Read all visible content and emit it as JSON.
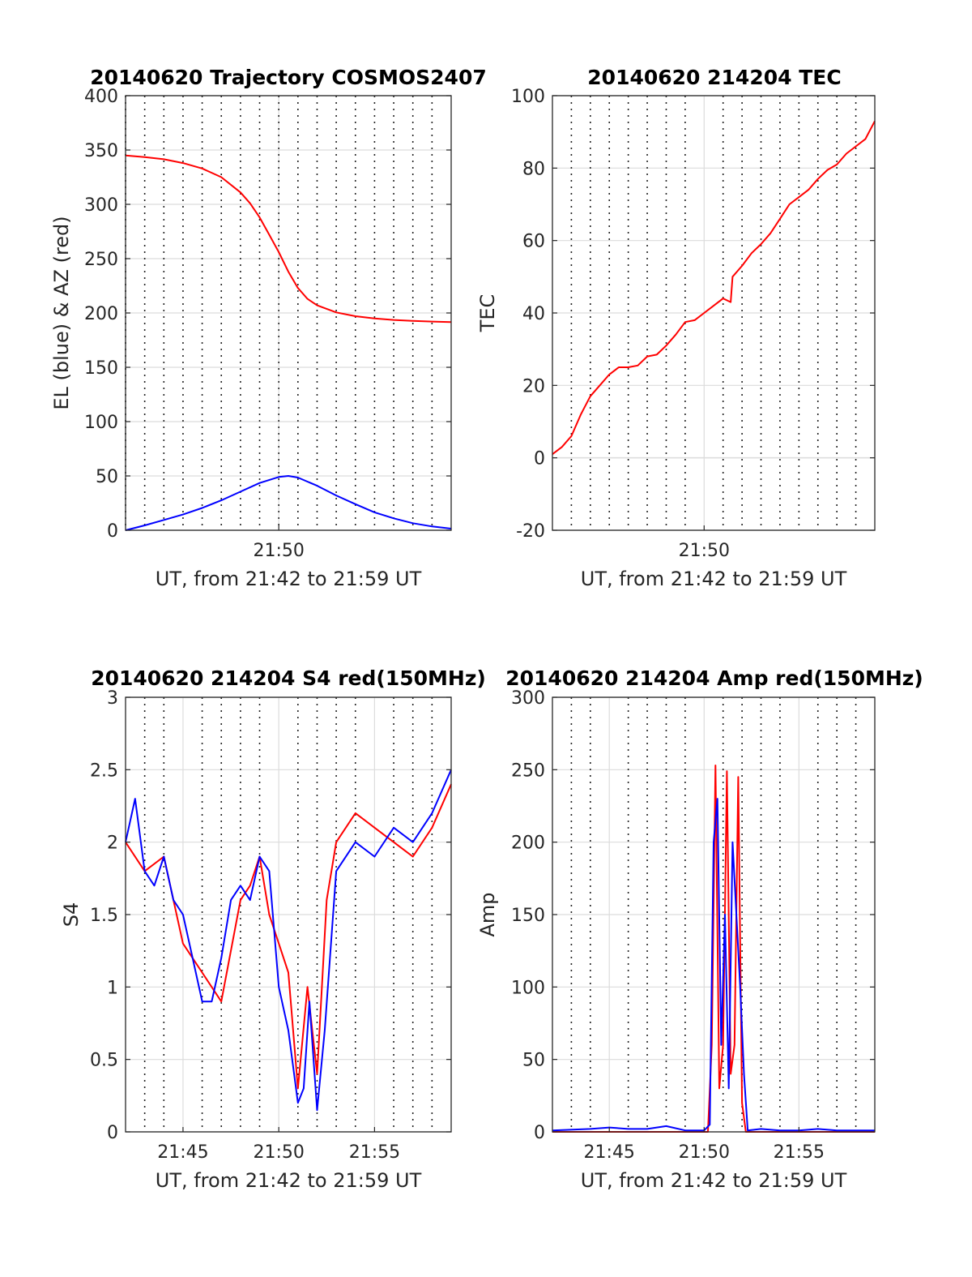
{
  "chart_data": [
    {
      "type": "line",
      "title": "20140620 Trajectory COSMOS2407",
      "xlabel": "UT, from 21:42 to 21:59 UT",
      "ylabel": "EL (blue) & AZ (red)",
      "xlim": [
        42,
        59
      ],
      "ylim": [
        0,
        400
      ],
      "xticks": [
        {
          "value": 50,
          "label": "21:50"
        }
      ],
      "yticks": [
        {
          "value": 0,
          "label": "0"
        },
        {
          "value": 50,
          "label": "50"
        },
        {
          "value": 100,
          "label": "100"
        },
        {
          "value": 150,
          "label": "150"
        },
        {
          "value": 200,
          "label": "200"
        },
        {
          "value": 250,
          "label": "250"
        },
        {
          "value": 300,
          "label": "300"
        },
        {
          "value": 350,
          "label": "350"
        },
        {
          "value": 400,
          "label": "400"
        }
      ],
      "vgrid_minutes": [
        42,
        43,
        44,
        45,
        46,
        47,
        48,
        49,
        50,
        51,
        52,
        53,
        54,
        55,
        56,
        57,
        58
      ],
      "series": [
        {
          "color": "#ff0000",
          "x": [
            42,
            43,
            44,
            45,
            46,
            47,
            48,
            48.5,
            49,
            49.5,
            50,
            50.5,
            51,
            51.5,
            52,
            53,
            54,
            55,
            56,
            57,
            58,
            59
          ],
          "y": [
            345,
            343.5,
            341.5,
            338,
            333,
            325,
            311,
            301,
            288,
            272,
            256,
            238,
            223,
            213,
            207,
            200.5,
            197,
            195,
            193.6,
            192.7,
            192.1,
            191.6
          ]
        },
        {
          "color": "#0000ff",
          "x": [
            42,
            43,
            44,
            45,
            46,
            47,
            48,
            49,
            50,
            50.5,
            51,
            52,
            53,
            54,
            55,
            56,
            57,
            58,
            59
          ],
          "y": [
            0,
            4.5,
            9.5,
            14.5,
            20.5,
            27.5,
            35.5,
            43.5,
            49,
            50,
            48.5,
            41,
            32,
            24,
            16.5,
            11,
            6.5,
            3.5,
            1.5
          ]
        }
      ]
    },
    {
      "type": "line",
      "title": "20140620 214204 TEC",
      "xlabel": "UT, from 21:42 to 21:59 UT",
      "ylabel": "TEC",
      "xlim": [
        42,
        59
      ],
      "ylim": [
        -20,
        100
      ],
      "xticks": [
        {
          "value": 50,
          "label": "21:50"
        }
      ],
      "yticks": [
        {
          "value": -20,
          "label": "-20"
        },
        {
          "value": 0,
          "label": "0"
        },
        {
          "value": 20,
          "label": "20"
        },
        {
          "value": 40,
          "label": "40"
        },
        {
          "value": 60,
          "label": "60"
        },
        {
          "value": 80,
          "label": "80"
        },
        {
          "value": 100,
          "label": "100"
        }
      ],
      "vgrid_minutes": [
        43,
        44,
        45,
        46,
        47,
        48,
        49,
        51,
        52,
        53,
        54,
        55,
        56,
        57,
        58
      ],
      "series": [
        {
          "color": "#ff0000",
          "x": [
            42,
            42.5,
            43,
            43.5,
            44,
            44.5,
            45,
            45.5,
            46,
            46.5,
            47,
            47.5,
            48,
            48.5,
            49,
            49.5,
            50,
            50.5,
            51,
            51.4,
            51.5,
            52,
            52.5,
            53,
            53.5,
            54,
            54.5,
            55,
            55.5,
            56,
            56.5,
            57,
            57.5,
            58,
            58.5,
            59
          ],
          "y": [
            1,
            3,
            6,
            12,
            17,
            20,
            23,
            25,
            25,
            25.5,
            28,
            28.5,
            31,
            34,
            37.5,
            38,
            40,
            42,
            44,
            43,
            50,
            53,
            56.5,
            59,
            62,
            66,
            70,
            72,
            74,
            77,
            79.5,
            81,
            84,
            86,
            88,
            93
          ]
        }
      ]
    },
    {
      "type": "line",
      "title": "20140620 214204 S4 red(150MHz)",
      "xlabel": "UT, from 21:42 to 21:59 UT",
      "ylabel": "S4",
      "xlim": [
        42,
        59
      ],
      "ylim": [
        0,
        3
      ],
      "xticks": [
        {
          "value": 45,
          "label": "21:45"
        },
        {
          "value": 50,
          "label": "21:50"
        },
        {
          "value": 55,
          "label": "21:55"
        }
      ],
      "yticks": [
        {
          "value": 0,
          "label": "0"
        },
        {
          "value": 0.5,
          "label": "0.5"
        },
        {
          "value": 1,
          "label": "1"
        },
        {
          "value": 1.5,
          "label": "1.5"
        },
        {
          "value": 2,
          "label": "2"
        },
        {
          "value": 2.5,
          "label": "2.5"
        },
        {
          "value": 3,
          "label": "3"
        }
      ],
      "vgrid_minutes": [
        43,
        44,
        46,
        47,
        48,
        49,
        51,
        52,
        53,
        54,
        56,
        57,
        58
      ],
      "series": [
        {
          "color": "#ff0000",
          "x": [
            42,
            43,
            44,
            45,
            46,
            47,
            48,
            48.5,
            49,
            49.5,
            50,
            50.5,
            51,
            51.5,
            52,
            52.5,
            53,
            54,
            55,
            56,
            57,
            58,
            59
          ],
          "y": [
            2.0,
            1.8,
            1.9,
            1.3,
            1.1,
            0.9,
            1.6,
            1.7,
            1.9,
            1.5,
            1.3,
            1.1,
            0.3,
            1.0,
            0.4,
            1.6,
            2.0,
            2.2,
            2.1,
            2.0,
            1.9,
            2.1,
            2.4
          ]
        },
        {
          "color": "#0000ff",
          "x": [
            42,
            42.5,
            43,
            43.5,
            44,
            44.5,
            45,
            45.5,
            46,
            46.5,
            47,
            47.5,
            48,
            48.5,
            49,
            49.5,
            50,
            50.5,
            51,
            51.3,
            51.6,
            52,
            52.4,
            53,
            54,
            55,
            56,
            57,
            58,
            59
          ],
          "y": [
            2.0,
            2.3,
            1.8,
            1.7,
            1.9,
            1.6,
            1.5,
            1.2,
            0.9,
            0.9,
            1.2,
            1.6,
            1.7,
            1.6,
            1.9,
            1.8,
            1.0,
            0.7,
            0.2,
            0.3,
            0.9,
            0.15,
            0.7,
            1.8,
            2.0,
            1.9,
            2.1,
            2.0,
            2.2,
            2.5
          ]
        }
      ]
    },
    {
      "type": "line",
      "title": "20140620 214204 Amp red(150MHz)",
      "xlabel": "UT, from 21:42 to 21:59 UT",
      "ylabel": "Amp",
      "xlim": [
        42,
        59
      ],
      "ylim": [
        0,
        300
      ],
      "xticks": [
        {
          "value": 45,
          "label": "21:45"
        },
        {
          "value": 50,
          "label": "21:50"
        },
        {
          "value": 55,
          "label": "21:55"
        }
      ],
      "yticks": [
        {
          "value": 0,
          "label": "0"
        },
        {
          "value": 50,
          "label": "50"
        },
        {
          "value": 100,
          "label": "100"
        },
        {
          "value": 150,
          "label": "150"
        },
        {
          "value": 200,
          "label": "200"
        },
        {
          "value": 250,
          "label": "250"
        },
        {
          "value": 300,
          "label": "300"
        }
      ],
      "vgrid_minutes": [
        43,
        44,
        46,
        47,
        48,
        49,
        51,
        52,
        53,
        54,
        56,
        57,
        58
      ],
      "series": [
        {
          "color": "#ff0000",
          "x": [
            42,
            50.2,
            50.4,
            50.6,
            50.8,
            51,
            51.2,
            51.4,
            51.6,
            51.8,
            52,
            52.2,
            59
          ],
          "y": [
            0,
            0,
            60,
            253,
            30,
            60,
            249,
            40,
            60,
            245,
            20,
            0,
            0
          ]
        },
        {
          "color": "#0000ff",
          "x": [
            42,
            44,
            45,
            46,
            47,
            48,
            49,
            50,
            50.3,
            50.5,
            50.7,
            50.9,
            51.1,
            51.3,
            51.5,
            51.7,
            51.9,
            52.1,
            52.3,
            53,
            54,
            55,
            56,
            57,
            58,
            59
          ],
          "y": [
            1,
            2,
            3,
            2,
            2,
            4,
            1,
            1,
            5,
            200,
            230,
            60,
            150,
            30,
            200,
            150,
            100,
            40,
            1,
            2,
            1,
            1,
            2,
            1,
            1,
            1
          ]
        }
      ]
    }
  ]
}
